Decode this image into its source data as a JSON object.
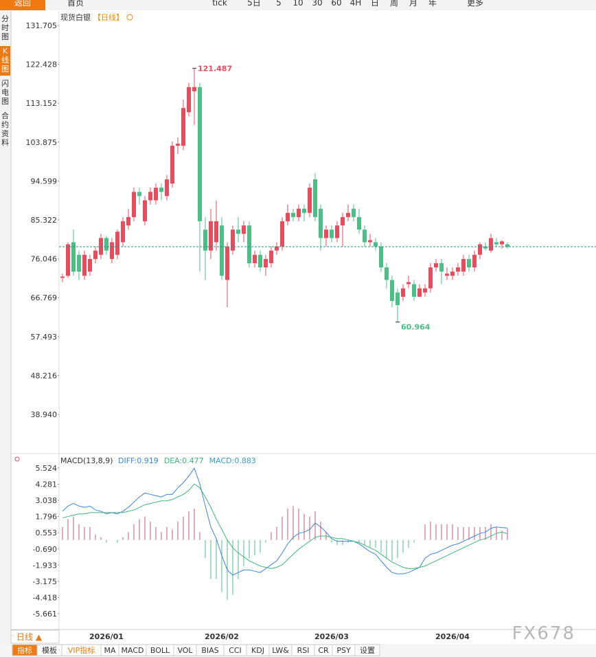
{
  "toolbar": [
    "返回",
    "首页",
    "tick",
    "5日",
    "5",
    "10",
    "30",
    "60",
    "4H",
    "日",
    "周",
    "月",
    "年",
    "更多"
  ],
  "sidebar": [
    "分时图",
    "K线图",
    "闪电图",
    "合约资料"
  ],
  "timeframe_button": "日线 ▲",
  "indicator_tabs": [
    "指标",
    "模板",
    "VIP指标",
    "MA",
    "MACD",
    "BOLL",
    "VOL",
    "BIAS",
    "CCI",
    "KDJ",
    "LW&",
    "RSI",
    "CR",
    "PSY",
    "设置"
  ],
  "watermark": "FX678",
  "chart_data": [
    {
      "type": "candlestick",
      "title": "现货白银",
      "period": "【日线】",
      "categories": [
        null,
        null,
        null,
        null,
        null,
        null,
        null,
        null,
        "2026/01",
        null,
        null,
        null,
        null,
        null,
        null,
        null,
        null,
        null,
        null,
        null,
        null,
        null,
        null,
        null,
        null,
        null,
        null,
        null,
        null,
        "2026/02",
        null,
        null,
        null,
        null,
        null,
        null,
        null,
        null,
        null,
        null,
        null,
        null,
        null,
        null,
        null,
        null,
        null,
        null,
        null,
        "2026/03",
        null,
        null,
        null,
        null,
        null,
        null,
        null,
        null,
        null,
        null,
        null,
        null,
        null,
        null,
        null,
        null,
        null,
        null,
        null,
        null,
        null,
        "2026/04",
        null,
        null,
        null,
        null,
        null,
        null,
        null,
        null,
        null,
        null
      ],
      "open": [
        71.5,
        72,
        80,
        77,
        72,
        73,
        76,
        77,
        81,
        76,
        77,
        80,
        84,
        86,
        92,
        85,
        90,
        90,
        93,
        91,
        94,
        103,
        103,
        111,
        116,
        117,
        83,
        78,
        80,
        84,
        71,
        78,
        83,
        82,
        84,
        75,
        77,
        74,
        75,
        78,
        79,
        85,
        87,
        86,
        88,
        87,
        95,
        88,
        81,
        83,
        81,
        84,
        86,
        88,
        86,
        83,
        80,
        80,
        79,
        74,
        71,
        68,
        67,
        70,
        70,
        67,
        68,
        69,
        74,
        75,
        72,
        72,
        73,
        73,
        76,
        74,
        77,
        79,
        78,
        80,
        79.5,
        79.5
      ],
      "high": [
        72.5,
        80,
        83,
        78,
        78,
        77,
        79,
        82,
        81.5,
        81,
        83,
        86,
        88,
        93,
        93,
        91,
        93,
        94,
        94,
        96,
        104,
        105,
        114,
        118,
        121.487,
        118,
        86,
        88,
        90,
        86,
        80,
        84,
        86,
        85,
        85,
        78,
        78,
        77,
        79,
        80,
        86,
        89,
        88,
        89,
        89,
        94,
        96.5,
        89,
        84,
        84,
        85,
        87,
        89,
        89,
        88,
        84,
        82,
        81,
        80,
        75,
        72,
        69,
        70,
        72,
        71,
        70,
        70,
        75,
        76,
        76,
        74,
        74,
        75,
        77,
        77,
        78,
        80,
        80,
        82,
        81,
        80.5,
        80
      ],
      "low": [
        70.5,
        71.5,
        72,
        71,
        71,
        72,
        75,
        76,
        77,
        75,
        76,
        79,
        83,
        85,
        89,
        84,
        89,
        89,
        90,
        90,
        93,
        101,
        102,
        110,
        108,
        73,
        71,
        76,
        78,
        71,
        64.5,
        77,
        80,
        80,
        74,
        74,
        73,
        72,
        74,
        77,
        78,
        84,
        85,
        85,
        85,
        86,
        85,
        78,
        79,
        80,
        80,
        79,
        85,
        85,
        82,
        79,
        79,
        78,
        73,
        69,
        64.5,
        60.964,
        66,
        69,
        66,
        67,
        67,
        68,
        73,
        70,
        71,
        71,
        72,
        72,
        73,
        73,
        76,
        78,
        77.5,
        79,
        78.5,
        78.5
      ],
      "close": [
        71.8,
        79.5,
        73,
        73,
        77,
        76,
        78,
        81,
        78,
        80,
        82.5,
        85,
        86,
        92,
        91,
        90,
        92,
        93,
        92,
        95,
        103,
        103.5,
        112,
        117,
        117,
        85,
        78,
        85,
        85,
        72,
        79,
        83,
        82,
        84,
        75,
        77,
        74,
        76,
        78,
        79,
        85,
        87,
        86,
        88,
        87,
        93,
        86,
        81,
        83,
        81,
        84,
        86,
        87,
        86,
        83,
        80,
        80.5,
        79,
        74,
        71,
        66,
        65,
        69,
        70.5,
        67,
        69,
        69,
        74,
        75,
        73,
        72.5,
        73,
        74,
        76,
        74,
        77,
        79.5,
        78.5,
        81,
        79.5,
        80.2,
        78.93
      ],
      "up_color": "#e64c5c",
      "down_color": "#4cbf87",
      "ylim": [
        30.42,
        135.31
      ],
      "yticks": [
        131.705,
        122.428,
        113.152,
        103.875,
        94.599,
        85.322,
        76.046,
        66.769,
        57.493,
        48.216,
        {
          "value": 38.94,
          "label": "38.940"
        }
      ],
      "max_index": 24,
      "min_index": 61
    },
    {
      "type": "macd",
      "title": "MACD(13,8,9)",
      "series": [
        {
          "name": "DIFF:0.919",
          "color": "#3a86e0",
          "values": [
            2.2,
            2.6,
            2.8,
            2.6,
            2.5,
            2.6,
            2.3,
            2.2,
            2.0,
            2.1,
            2.0,
            2.2,
            2.5,
            2.9,
            3.3,
            3.6,
            3.5,
            3.4,
            3.3,
            3.5,
            3.5,
            4.0,
            4.4,
            4.9,
            5.5,
            4.3,
            2.6,
            1.0,
            0.1,
            -1.2,
            -2.3,
            -2.7,
            -2.5,
            -2.3,
            -2.3,
            -2.4,
            -2.5,
            -2.2,
            -1.9,
            -1.6,
            -1.0,
            -0.3,
            0.2,
            0.5,
            0.6,
            0.8,
            1.3,
            1.0,
            0.6,
            0.1,
            -0.1,
            -0.1,
            -0.1,
            -0.1,
            -0.3,
            -0.6,
            -0.9,
            -1.1,
            -1.6,
            -2.1,
            -2.5,
            -2.6,
            -2.6,
            -2.5,
            -2.3,
            -2.1,
            -1.4,
            -1.1,
            -1.0,
            -0.8,
            -0.6,
            -0.4,
            -0.3,
            -0.1,
            0.1,
            0.3,
            0.5,
            0.6,
            0.9,
            1.0,
            0.95,
            0.919
          ]
        },
        {
          "name": "DEA:0.477",
          "color": "#3fb77a",
          "values": [
            1.7,
            1.8,
            1.9,
            2.0,
            2.0,
            2.1,
            2.1,
            2.1,
            2.1,
            2.1,
            2.1,
            2.1,
            2.2,
            2.3,
            2.5,
            2.7,
            2.8,
            2.9,
            3.0,
            3.0,
            3.1,
            3.3,
            3.5,
            3.8,
            4.3,
            4.0,
            3.3,
            2.5,
            1.6,
            0.8,
            0.0,
            -0.6,
            -1.0,
            -1.3,
            -1.6,
            -1.8,
            -2.0,
            -2.1,
            -2.2,
            -2.1,
            -1.9,
            -1.5,
            -1.1,
            -0.7,
            -0.4,
            -0.1,
            0.2,
            0.3,
            0.3,
            0.2,
            0.1,
            0.1,
            0.0,
            -0.1,
            -0.2,
            -0.4,
            -0.6,
            -0.8,
            -1.1,
            -1.4,
            -1.7,
            -1.9,
            -2.1,
            -2.2,
            -2.2,
            -2.1,
            -2.0,
            -1.8,
            -1.6,
            -1.4,
            -1.2,
            -1.0,
            -0.8,
            -0.6,
            -0.4,
            -0.2,
            0.0,
            0.1,
            0.3,
            0.5,
            0.6,
            0.477
          ]
        },
        {
          "name": "MACD:0.883",
          "color": "#3aa0c8",
          "values": [
            1.0,
            1.6,
            1.8,
            1.2,
            1.0,
            1.0,
            0.4,
            0.2,
            -0.2,
            0,
            -0.2,
            0.2,
            0.6,
            1.2,
            1.6,
            1.8,
            1.4,
            1.0,
            0.6,
            1.0,
            0.8,
            1.4,
            1.8,
            2.2,
            2.4,
            0.6,
            -1.4,
            -3.0,
            -3.0,
            -4.0,
            -4.6,
            -4.2,
            -3.0,
            -2.0,
            -1.4,
            -1.2,
            -1.0,
            -0.2,
            0.6,
            1.0,
            1.8,
            2.4,
            2.6,
            2.4,
            2.0,
            1.8,
            2.2,
            1.4,
            0.6,
            -0.2,
            -0.4,
            -0.4,
            -0.2,
            0,
            -0.2,
            -0.4,
            -0.6,
            -0.6,
            -1.0,
            -1.4,
            -1.6,
            -1.4,
            -1.0,
            -0.6,
            -0.2,
            0,
            1.2,
            1.4,
            1.2,
            1.2,
            1.2,
            1.2,
            1.0,
            1.0,
            1.0,
            1.0,
            1.0,
            1.0,
            1.2,
            1.0,
            0.7,
            0.883
          ],
          "positive_color": "#c9577a",
          "negative_color": "#4cbf87"
        }
      ],
      "ylim": [
        -6.82,
        6.47
      ],
      "yticks": [
        5.524,
        4.281,
        3.038,
        1.796,
        0.553,
        {
          "value": -0.69,
          "label": "-0.690"
        },
        -1.933,
        -3.175,
        -4.418,
        -5.661
      ]
    }
  ]
}
